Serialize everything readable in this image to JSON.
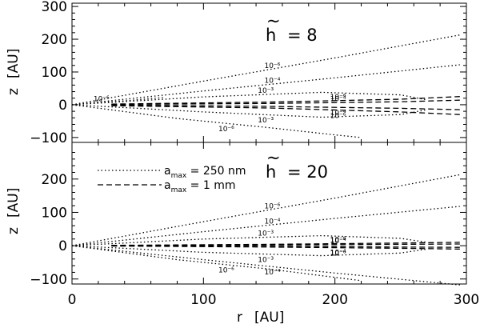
{
  "chart_data": {
    "type": "line",
    "xlabel": "r",
    "xunit": "[AU]",
    "ylabel": "z",
    "yunit": "[AU]",
    "xlim": [
      0,
      300
    ],
    "xticks": [
      "0",
      "100",
      "200",
      "300"
    ],
    "legend": {
      "placement": "top-left of lower panel",
      "entries": [
        {
          "prefix": "a",
          "sub": "max",
          "text": " = 250 nm",
          "style": "dotted"
        },
        {
          "prefix": "a",
          "sub": "max",
          "text": " = 1 mm",
          "style": "dashed"
        }
      ]
    },
    "panels": [
      {
        "annotation_symbol": "h",
        "annotation_value": "= 8",
        "ylim": [
          -115,
          310
        ],
        "yticks": [
          "300",
          "200",
          "100",
          "0",
          "−100"
        ],
        "series": [
          {
            "style": "dotted",
            "label": "10⁻⁶",
            "side": "upper",
            "points": [
              [
                0,
                0
              ],
              [
                100,
                72
              ],
              [
                200,
                143
              ],
              [
                295,
                213
              ]
            ]
          },
          {
            "style": "dotted",
            "label": "10⁻⁴",
            "side": "upper",
            "points": [
              [
                0,
                0
              ],
              [
                100,
                42
              ],
              [
                200,
                82
              ],
              [
                295,
                122
              ]
            ]
          },
          {
            "style": "dotted",
            "label": "10⁻³",
            "side": "upper",
            "points": [
              [
                0,
                0
              ],
              [
                100,
                24
              ],
              [
                190,
                38
              ],
              [
                250,
                30
              ],
              [
                270,
                15
              ]
            ]
          },
          {
            "style": "dotted",
            "label": "10⁻³",
            "side": "lower",
            "points": [
              [
                0,
                0
              ],
              [
                100,
                -22
              ],
              [
                190,
                -38
              ],
              [
                250,
                -30
              ],
              [
                270,
                -15
              ]
            ]
          },
          {
            "style": "dotted",
            "label": "10⁻⁶",
            "side": "lower",
            "points": [
              [
                0,
                0
              ],
              [
                80,
                -42
              ],
              [
                150,
                -70
              ],
              [
                200,
                -92
              ],
              [
                220,
                -100
              ]
            ]
          },
          {
            "style": "dotted",
            "label": "10⁻⁶",
            "side": "upper",
            "points": [
              [
                0,
                0
              ],
              [
                40,
                12
              ],
              [
                70,
                22
              ]
            ]
          },
          {
            "style": "dashed",
            "label": "10⁻⁶",
            "side": "upper",
            "points": [
              [
                30,
                2
              ],
              [
                150,
                8
              ],
              [
                250,
                17
              ],
              [
                295,
                25
              ]
            ]
          },
          {
            "style": "dashed",
            "label": "10⁻⁴",
            "side": "upper",
            "points": [
              [
                30,
                1
              ],
              [
                150,
                4
              ],
              [
                250,
                9
              ],
              [
                295,
                14
              ]
            ]
          },
          {
            "style": "dashed",
            "label": "10⁻⁴",
            "side": "lower",
            "points": [
              [
                30,
                -1
              ],
              [
                150,
                -5
              ],
              [
                250,
                -11
              ],
              [
                295,
                -15
              ]
            ]
          },
          {
            "style": "dashed",
            "label": "10⁻⁶",
            "side": "lower",
            "points": [
              [
                30,
                -3
              ],
              [
                150,
                -10
              ],
              [
                250,
                -22
              ],
              [
                295,
                -30
              ]
            ]
          }
        ]
      },
      {
        "annotation_symbol": "h",
        "annotation_value": "= 20",
        "ylim": [
          -115,
          310
        ],
        "yticks": [
          "200",
          "100",
          "0",
          "−100"
        ],
        "series": [
          {
            "style": "dotted",
            "label": "10⁻⁶",
            "side": "upper",
            "points": [
              [
                0,
                0
              ],
              [
                100,
                72
              ],
              [
                200,
                143
              ],
              [
                295,
                213
              ]
            ]
          },
          {
            "style": "dotted",
            "label": "10⁻⁴",
            "side": "upper",
            "points": [
              [
                0,
                0
              ],
              [
                100,
                42
              ],
              [
                200,
                82
              ],
              [
                295,
                118
              ]
            ]
          },
          {
            "style": "dotted",
            "label": "10⁻³",
            "side": "upper",
            "points": [
              [
                0,
                0
              ],
              [
                100,
                20
              ],
              [
                190,
                30
              ],
              [
                250,
                22
              ],
              [
                270,
                10
              ]
            ]
          },
          {
            "style": "dotted",
            "label": "10⁻³",
            "side": "lower",
            "points": [
              [
                0,
                0
              ],
              [
                100,
                -20
              ],
              [
                190,
                -30
              ],
              [
                250,
                -22
              ],
              [
                270,
                -10
              ]
            ]
          },
          {
            "style": "dotted",
            "label": "10⁻⁶",
            "side": "lower",
            "points": [
              [
                0,
                0
              ],
              [
                80,
                -42
              ],
              [
                150,
                -70
              ],
              [
                200,
                -95
              ],
              [
                220,
                -105
              ]
            ]
          },
          {
            "style": "dotted",
            "label": "10⁻⁴",
            "side": "lower",
            "points": [
              [
                0,
                0
              ],
              [
                100,
                -42
              ],
              [
                200,
                -82
              ],
              [
                295,
                -118
              ]
            ]
          },
          {
            "style": "dashed",
            "label": "10⁻⁶",
            "side": "upper",
            "points": [
              [
                30,
                1
              ],
              [
                150,
                4
              ],
              [
                250,
                8
              ],
              [
                295,
                10
              ]
            ]
          },
          {
            "style": "dashed",
            "label": "10⁻⁴",
            "side": "upper",
            "points": [
              [
                30,
                0.5
              ],
              [
                150,
                2
              ],
              [
                250,
                4
              ],
              [
                295,
                5
              ]
            ]
          },
          {
            "style": "dashed",
            "label": "10⁻⁴",
            "side": "lower",
            "points": [
              [
                30,
                -0.5
              ],
              [
                150,
                -2
              ],
              [
                250,
                -4
              ],
              [
                295,
                -5
              ]
            ]
          },
          {
            "style": "dashed",
            "label": "10⁻⁶",
            "side": "lower",
            "points": [
              [
                30,
                -1
              ],
              [
                150,
                -4
              ],
              [
                250,
                -8
              ],
              [
                295,
                -10
              ]
            ]
          }
        ]
      }
    ]
  }
}
